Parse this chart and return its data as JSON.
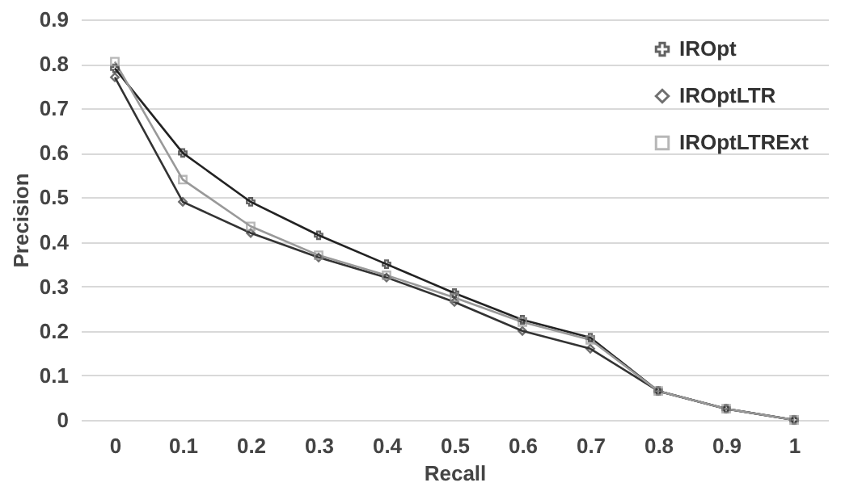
{
  "chart_data": {
    "type": "line",
    "xlabel": "Recall",
    "ylabel": "Precision",
    "categories": [
      "0",
      "0.1",
      "0.2",
      "0.3",
      "0.4",
      "0.5",
      "0.6",
      "0.7",
      "0.8",
      "0.9",
      "1"
    ],
    "series": [
      {
        "name": "IROpt",
        "color": "#222222",
        "marker": "cross",
        "values": [
          0.79,
          0.6,
          0.49,
          0.415,
          0.35,
          0.285,
          0.225,
          0.185,
          0.065,
          0.025,
          0
        ]
      },
      {
        "name": "IROptLTR",
        "color": "#333333",
        "marker": "diamond",
        "values": [
          0.77,
          0.49,
          0.42,
          0.365,
          0.32,
          0.265,
          0.2,
          0.16,
          0.065,
          0.025,
          0
        ]
      },
      {
        "name": "IROptLTRExt",
        "color": "#999999",
        "marker": "square",
        "values": [
          0.805,
          0.54,
          0.435,
          0.37,
          0.325,
          0.275,
          0.22,
          0.18,
          0.065,
          0.025,
          0
        ]
      }
    ],
    "ylim": [
      0,
      0.9
    ],
    "yticks": [
      0,
      0.1,
      0.2,
      0.3,
      0.4,
      0.5,
      0.6,
      0.7,
      0.8,
      0.9
    ],
    "grid": "y",
    "legend": "top right",
    "line_style": "solid"
  }
}
